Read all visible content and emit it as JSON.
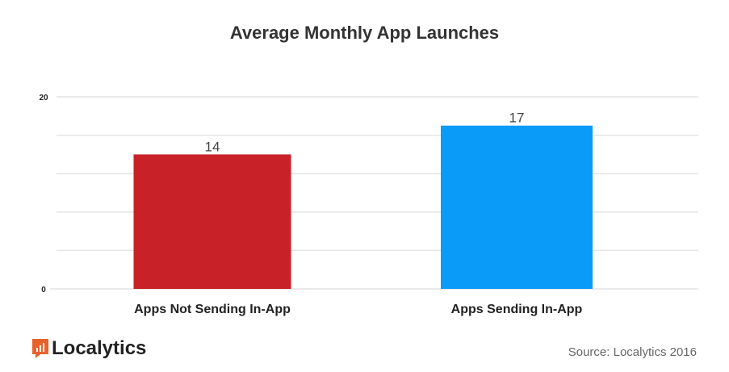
{
  "chart_data": {
    "type": "bar",
    "title": "Average Monthly App Launches",
    "categories": [
      "Apps Not Sending In-App",
      "Apps Sending In-App"
    ],
    "values": [
      14,
      17
    ],
    "data_labels": [
      "14",
      "17"
    ],
    "colors": [
      "#c92128",
      "#0a9af7"
    ],
    "ylim": [
      0,
      20
    ],
    "yticks": [
      0,
      4,
      8,
      12,
      16,
      20
    ],
    "ytick_labels_shown": [
      "0",
      "20"
    ],
    "grid": true,
    "legend": "none"
  },
  "footer": {
    "logo_text": "Localytics",
    "logo_color": "#e8622c",
    "source": "Source: Localytics 2016"
  }
}
